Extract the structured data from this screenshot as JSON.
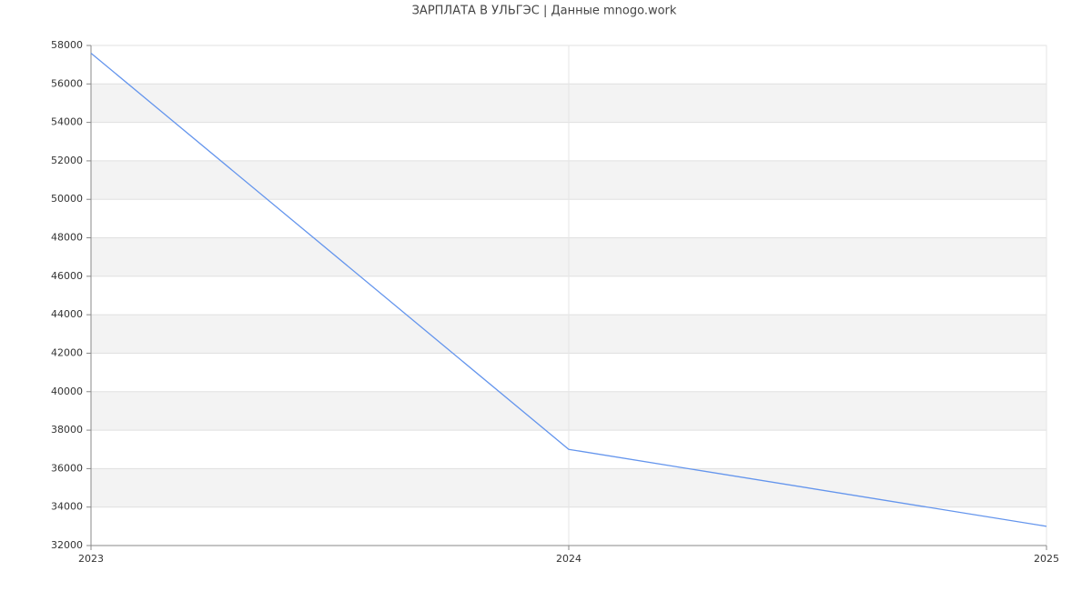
{
  "chart_data": {
    "type": "line",
    "title": "ЗАРПЛАТА В УЛЬГЭС | Данные mnogo.work",
    "x": [
      2023,
      2024,
      2025
    ],
    "values": [
      57600,
      37000,
      33000
    ],
    "color": "#6495ed",
    "xlim": [
      2023,
      2025
    ],
    "xticks": [
      2023,
      2024,
      2025
    ],
    "ylim": [
      32000,
      58000
    ],
    "yticks": [
      32000,
      34000,
      36000,
      38000,
      40000,
      42000,
      44000,
      46000,
      48000,
      50000,
      52000,
      54000,
      56000,
      58000
    ],
    "grid": true
  }
}
